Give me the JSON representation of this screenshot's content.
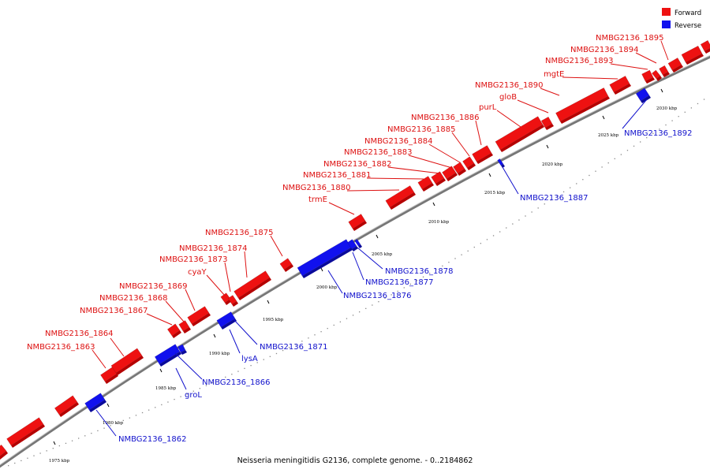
{
  "caption": "Neisseria meningitidis G2136, complete genome. - 0..2184862",
  "legend": [
    {
      "label": "Forward",
      "color": "#ee1111"
    },
    {
      "label": "Reverse",
      "color": "#1111ee"
    }
  ],
  "colors": {
    "forward": "#ee1111",
    "reverse": "#1111ee",
    "axis": "#888888"
  },
  "ticks": [
    "1975 kbp",
    "1980 kbp",
    "1985 kbp",
    "1990 kbp",
    "1995 kbp",
    "2000 kbp",
    "2005 kbp",
    "2010 kbp",
    "2015 kbp",
    "2020 kbp",
    "2025 kbp",
    "2030 kbp"
  ],
  "labels": [
    {
      "text": "NMBG2136_1862",
      "strand": "reverse"
    },
    {
      "text": "NMBG2136_1863",
      "strand": "forward"
    },
    {
      "text": "NMBG2136_1864",
      "strand": "forward"
    },
    {
      "text": "groL",
      "strand": "reverse"
    },
    {
      "text": "NMBG2136_1866",
      "strand": "reverse"
    },
    {
      "text": "NMBG2136_1867",
      "strand": "forward"
    },
    {
      "text": "NMBG2136_1868",
      "strand": "forward"
    },
    {
      "text": "NMBG2136_1869",
      "strand": "forward"
    },
    {
      "text": "lysA",
      "strand": "reverse"
    },
    {
      "text": "NMBG2136_1871",
      "strand": "reverse"
    },
    {
      "text": "cyaY",
      "strand": "forward"
    },
    {
      "text": "NMBG2136_1873",
      "strand": "forward"
    },
    {
      "text": "NMBG2136_1874",
      "strand": "forward"
    },
    {
      "text": "NMBG2136_1875",
      "strand": "forward"
    },
    {
      "text": "NMBG2136_1876",
      "strand": "reverse"
    },
    {
      "text": "NMBG2136_1877",
      "strand": "reverse"
    },
    {
      "text": "NMBG2136_1878",
      "strand": "reverse"
    },
    {
      "text": "trmE",
      "strand": "forward"
    },
    {
      "text": "NMBG2136_1880",
      "strand": "forward"
    },
    {
      "text": "NMBG2136_1881",
      "strand": "forward"
    },
    {
      "text": "NMBG2136_1882",
      "strand": "forward"
    },
    {
      "text": "NMBG2136_1883",
      "strand": "forward"
    },
    {
      "text": "NMBG2136_1884",
      "strand": "forward"
    },
    {
      "text": "NMBG2136_1885",
      "strand": "forward"
    },
    {
      "text": "NMBG2136_1886",
      "strand": "forward"
    },
    {
      "text": "NMBG2136_1887",
      "strand": "reverse"
    },
    {
      "text": "purL",
      "strand": "forward"
    },
    {
      "text": "gloB",
      "strand": "forward"
    },
    {
      "text": "NMBG2136_1890",
      "strand": "forward"
    },
    {
      "text": "mgtE",
      "strand": "forward"
    },
    {
      "text": "NMBG2136_1892",
      "strand": "reverse"
    },
    {
      "text": "NMBG2136_1893",
      "strand": "forward"
    },
    {
      "text": "NMBG2136_1894",
      "strand": "forward"
    },
    {
      "text": "NMBG2136_1895",
      "strand": "forward"
    }
  ]
}
